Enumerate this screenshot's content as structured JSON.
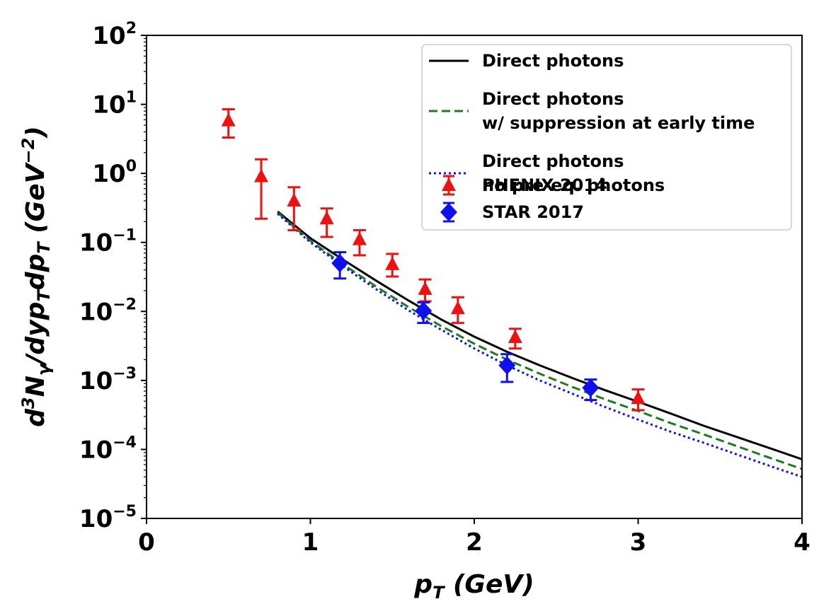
{
  "chart_data": {
    "type": "scatter",
    "xlabel": "p_T (GeV)",
    "ylabel": "d^3N_γ/dyp_Tdp_T (GeV^-2)",
    "xlim": [
      0,
      4
    ],
    "ylim": [
      1e-05,
      100
    ],
    "yscale": "log",
    "grid": false,
    "legend_position": "top-right",
    "x_ticks": [
      {
        "value": 0,
        "label": "0"
      },
      {
        "value": 1,
        "label": "1"
      },
      {
        "value": 2,
        "label": "2"
      },
      {
        "value": 3,
        "label": "3"
      },
      {
        "value": 4,
        "label": "4"
      }
    ],
    "y_ticks": [
      {
        "exp": 2,
        "base": "10",
        "sup": "2"
      },
      {
        "exp": 1,
        "base": "10",
        "sup": "1"
      },
      {
        "exp": 0,
        "base": "10",
        "sup": "0"
      },
      {
        "exp": -1,
        "base": "10",
        "sup": "−1"
      },
      {
        "exp": -2,
        "base": "10",
        "sup": "−2"
      },
      {
        "exp": -3,
        "base": "10",
        "sup": "−3"
      },
      {
        "exp": -4,
        "base": "10",
        "sup": "−4"
      },
      {
        "exp": -5,
        "base": "10",
        "sup": "−5"
      }
    ],
    "curves": [
      {
        "name": "Direct photons",
        "legend_lines": [
          "Direct photons"
        ],
        "color": "#000000",
        "style": "solid",
        "x": [
          0.8,
          1.0,
          1.2,
          1.4,
          1.6,
          1.8,
          2.0,
          2.2,
          2.4,
          2.6,
          2.8,
          3.0,
          3.2,
          3.4,
          3.6,
          3.8,
          4.0
        ],
        "y": [
          0.28,
          0.115,
          0.056,
          0.028,
          0.0143,
          0.0076,
          0.0043,
          0.0026,
          0.00165,
          0.00108,
          0.00072,
          0.00049,
          0.00033,
          0.00022,
          0.000152,
          0.000105,
          7.2e-05
        ]
      },
      {
        "name": "Direct photons w/ suppression at early time",
        "legend_lines": [
          "Direct photons",
          "w/ suppression at early time"
        ],
        "color": "#1a7f1a",
        "style": "dashed",
        "x": [
          0.8,
          1.0,
          1.2,
          1.4,
          1.6,
          1.8,
          2.0,
          2.2,
          2.4,
          2.6,
          2.8,
          3.0,
          3.2,
          3.4,
          3.6,
          3.8,
          4.0
        ],
        "y": [
          0.27,
          0.105,
          0.048,
          0.023,
          0.0115,
          0.0061,
          0.0034,
          0.002,
          0.00125,
          0.0008,
          0.00053,
          0.00036,
          0.00024,
          0.000165,
          0.000112,
          7.6e-05,
          5.2e-05
        ]
      },
      {
        "name": "Direct photons no pre-eq. photons",
        "legend_lines": [
          "Direct photons",
          "no pre-eq. photons"
        ],
        "color": "#1010ee",
        "style": "dotted",
        "x": [
          0.8,
          1.0,
          1.2,
          1.4,
          1.6,
          1.8,
          2.0,
          2.2,
          2.4,
          2.6,
          2.8,
          3.0,
          3.2,
          3.4,
          3.6,
          3.8,
          4.0
        ],
        "y": [
          0.26,
          0.1,
          0.045,
          0.021,
          0.0103,
          0.0054,
          0.0029,
          0.00165,
          0.001,
          0.00064,
          0.00041,
          0.00027,
          0.00018,
          0.000125,
          8.5e-05,
          5.8e-05,
          4e-05
        ]
      }
    ],
    "data_series": [
      {
        "name": "PHENIX 2014",
        "color": "#ee1111",
        "marker": "triangle",
        "points": [
          {
            "x": 0.5,
            "y": 5.8,
            "lo": 3.3,
            "hi": 8.5
          },
          {
            "x": 0.7,
            "y": 0.9,
            "lo": 0.22,
            "hi": 1.6
          },
          {
            "x": 0.9,
            "y": 0.4,
            "lo": 0.15,
            "hi": 0.63
          },
          {
            "x": 1.1,
            "y": 0.22,
            "lo": 0.12,
            "hi": 0.31
          },
          {
            "x": 1.3,
            "y": 0.11,
            "lo": 0.065,
            "hi": 0.15
          },
          {
            "x": 1.5,
            "y": 0.048,
            "lo": 0.032,
            "hi": 0.068
          },
          {
            "x": 1.7,
            "y": 0.021,
            "lo": 0.014,
            "hi": 0.029
          },
          {
            "x": 1.9,
            "y": 0.011,
            "lo": 0.0068,
            "hi": 0.016
          },
          {
            "x": 2.25,
            "y": 0.0042,
            "lo": 0.0029,
            "hi": 0.0056
          },
          {
            "x": 3.0,
            "y": 0.00055,
            "lo": 0.00037,
            "hi": 0.00074
          }
        ]
      },
      {
        "name": "STAR 2017",
        "color": "#1010ee",
        "marker": "diamond",
        "points": [
          {
            "x": 1.18,
            "y": 0.05,
            "lo": 0.03,
            "hi": 0.072
          },
          {
            "x": 1.69,
            "y": 0.0102,
            "lo": 0.0068,
            "hi": 0.0135
          },
          {
            "x": 2.2,
            "y": 0.00165,
            "lo": 0.00095,
            "hi": 0.0024
          },
          {
            "x": 2.71,
            "y": 0.00078,
            "lo": 0.00052,
            "hi": 0.00103
          }
        ]
      }
    ]
  }
}
